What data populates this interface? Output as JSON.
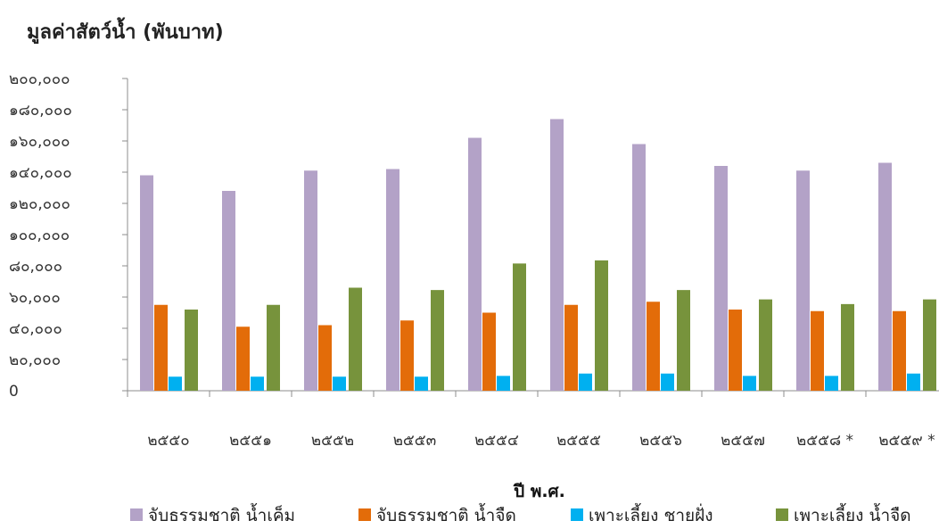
{
  "chart_data": {
    "type": "bar",
    "title": "มูลค่าสัตว์น้ำ (พันบาท)",
    "xlabel": "ปี พ.ศ.",
    "ylabel": "",
    "ylim": [
      0,
      200000
    ],
    "yticks": [
      "0",
      "๒๐,๐๐๐",
      "๔๐,๐๐๐",
      "๖๐,๐๐๐",
      "๘๐,๐๐๐",
      "๑๐๐,๐๐๐",
      "๑๒๐,๐๐๐",
      "๑๔๐,๐๐๐",
      "๑๖๐,๐๐๐",
      "๑๘๐,๐๐๐",
      "๒๐๐,๐๐๐"
    ],
    "yticks_values": [
      0,
      20000,
      40000,
      60000,
      80000,
      100000,
      120000,
      140000,
      160000,
      180000,
      200000
    ],
    "categories": [
      "๒๕๕๐",
      "๒๕๕๑",
      "๒๕๕๒",
      "๒๕๕๓",
      "๒๕๕๔",
      "๒๕๕๕",
      "๒๕๕๖",
      "๒๕๕๗",
      "๒๕๕๘ *",
      "๒๕๕๙ *"
    ],
    "grid": false,
    "legend_position": "bottom",
    "series": [
      {
        "name": "จับธรรมชาติ น้ำเค็ม",
        "color": "#b3a2c7",
        "values": [
          138000,
          128000,
          141000,
          142000,
          162000,
          174000,
          158000,
          144000,
          141000,
          146000
        ]
      },
      {
        "name": "จับธรรมชาติ น้ำจืด",
        "color": "#e36c09",
        "values": [
          55000,
          41000,
          42000,
          45000,
          50000,
          55000,
          57000,
          52000,
          51000,
          51000
        ]
      },
      {
        "name": "เพาะเลี้ยง ชายฝั่ง",
        "color": "#00b0f0",
        "values": [
          9000,
          9000,
          9000,
          9000,
          9500,
          11000,
          11000,
          9500,
          9500,
          11000
        ]
      },
      {
        "name": "เพาะเลี้ยง น้ำจืด",
        "color": "#77933c",
        "values": [
          52000,
          55000,
          66000,
          64500,
          81500,
          83500,
          64500,
          58500,
          55500,
          58500
        ]
      }
    ]
  }
}
